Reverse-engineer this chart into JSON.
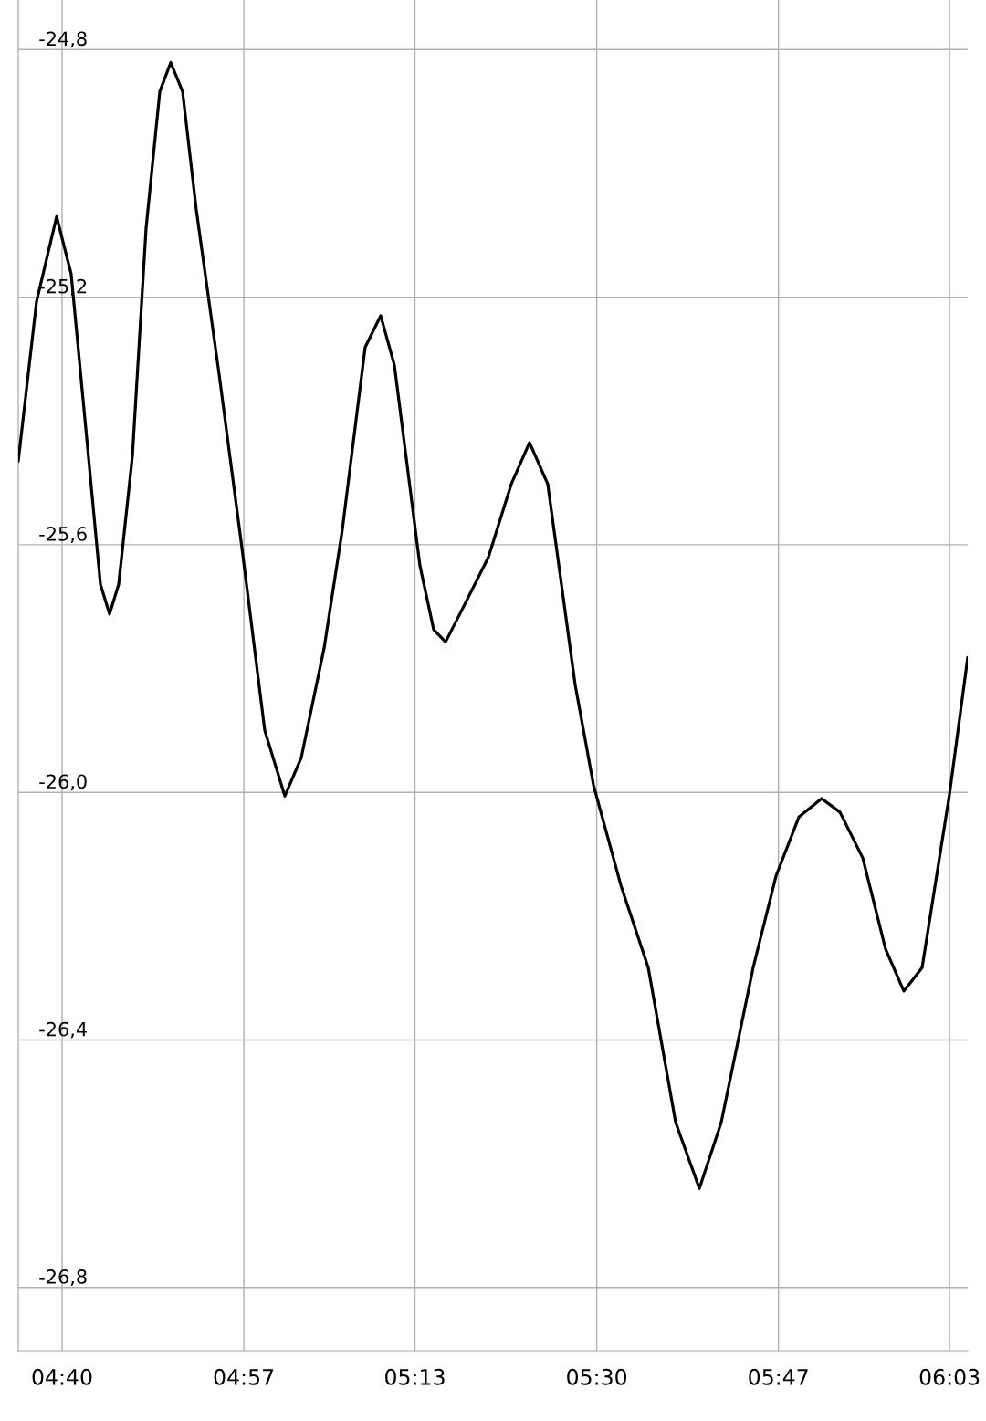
{
  "chart_data": {
    "type": "line",
    "x": [
      4.5984,
      4.6269,
      4.6582,
      4.6809,
      4.7051,
      4.7265,
      4.7407,
      4.7549,
      4.7763,
      4.7976,
      4.819,
      4.836,
      4.8545,
      4.8759,
      4.9115,
      4.947,
      4.9826,
      5.0139,
      5.0395,
      5.0751,
      5.1036,
      5.1391,
      5.1633,
      5.1847,
      5.2245,
      5.2459,
      5.2644,
      5.2886,
      5.3312,
      5.3668,
      5.3953,
      5.4237,
      5.4664,
      5.4949,
      5.5376,
      5.5803,
      5.623,
      5.66,
      5.6941,
      5.7439,
      5.7795,
      5.8151,
      5.8506,
      5.8791,
      5.9147,
      5.9502,
      5.9787,
      6.0072,
      6.0499,
      6.0783
    ],
    "series": [
      {
        "color": "#000000",
        "values": [
          -25.465,
          -25.207,
          -25.07,
          -25.163,
          -25.428,
          -25.664,
          -25.712,
          -25.664,
          -25.457,
          -25.089,
          -24.868,
          -24.821,
          -24.868,
          -25.059,
          -25.325,
          -25.605,
          -25.9,
          -26.006,
          -25.944,
          -25.767,
          -25.575,
          -25.281,
          -25.23,
          -25.31,
          -25.634,
          -25.737,
          -25.757,
          -25.708,
          -25.62,
          -25.502,
          -25.435,
          -25.502,
          -25.826,
          -25.988,
          -26.15,
          -26.283,
          -26.533,
          -26.64,
          -26.533,
          -26.283,
          -26.135,
          -26.04,
          -26.01,
          -26.032,
          -26.106,
          -26.253,
          -26.321,
          -26.283,
          -26.003,
          -25.782
        ]
      }
    ],
    "xlim": [
      4.5984,
      6.0783
    ],
    "xticks": [
      {
        "value": 4.6667,
        "label": "04:40"
      },
      {
        "value": 4.95,
        "label": "04:57"
      },
      {
        "value": 5.2167,
        "label": "05:13"
      },
      {
        "value": 5.5,
        "label": "05:30"
      },
      {
        "value": 5.7833,
        "label": "05:47"
      },
      {
        "value": 6.05,
        "label": "06:03"
      }
    ],
    "ylim": [
      -26.902,
      -24.72
    ],
    "yticks": [
      {
        "value": -24.8,
        "label": "-24,8"
      },
      {
        "value": -25.2,
        "label": "-25,2"
      },
      {
        "value": -25.6,
        "label": "-25,6"
      },
      {
        "value": -26.0,
        "label": "-26,0"
      },
      {
        "value": -26.4,
        "label": "-26,4"
      },
      {
        "value": -26.8,
        "label": "-26,8"
      }
    ],
    "grid": true,
    "marker": "none",
    "line_style": "solid"
  }
}
